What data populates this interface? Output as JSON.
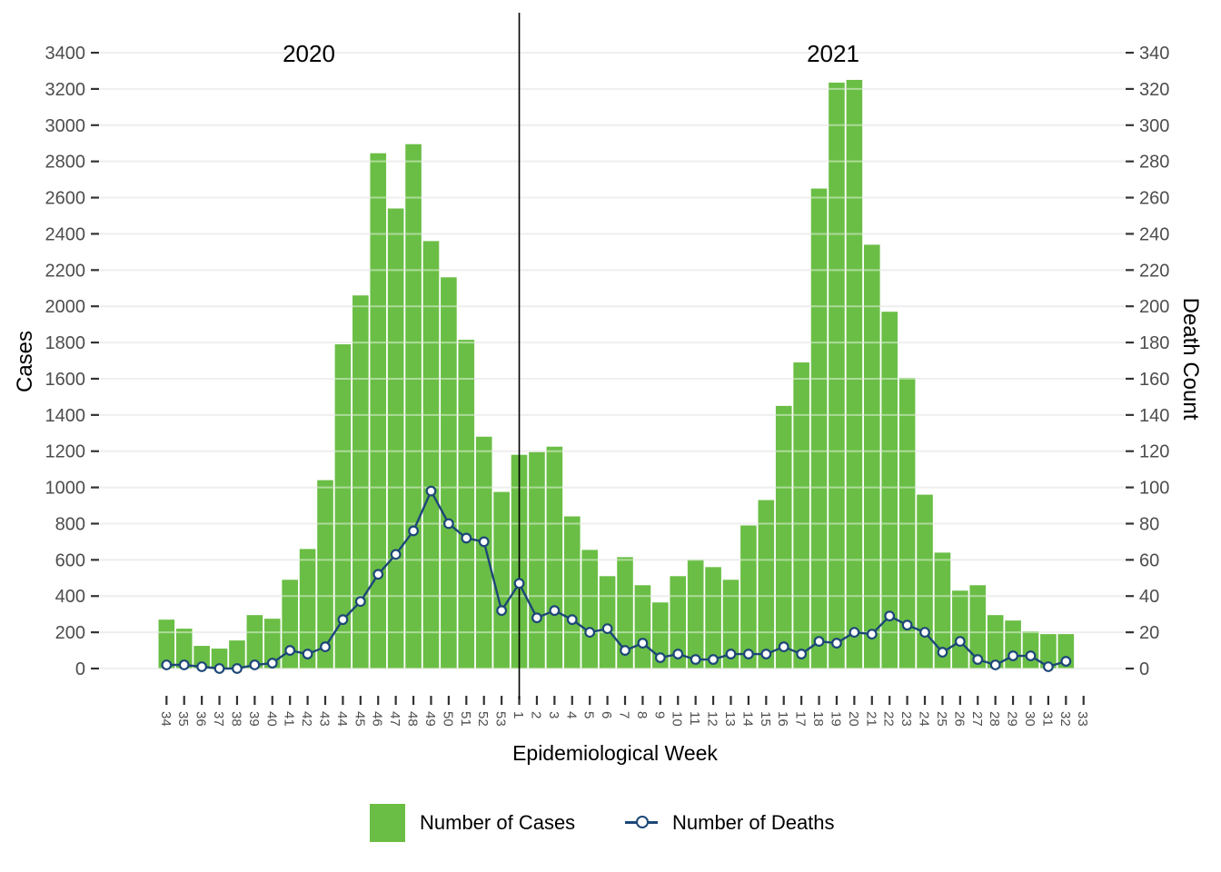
{
  "chart_data": {
    "type": "combo",
    "title": "",
    "xlabel": "Epidemiological Week",
    "ylabel_left": "Cases",
    "ylabel_right": "Death Count",
    "ylim_left": [
      0,
      3400
    ],
    "ylim_right": [
      0,
      340
    ],
    "y_left_ticks": [
      0,
      200,
      400,
      600,
      800,
      1000,
      1200,
      1400,
      1600,
      1800,
      2000,
      2200,
      2400,
      2600,
      2800,
      3000,
      3200,
      3400
    ],
    "y_right_ticks": [
      0,
      20,
      40,
      60,
      80,
      100,
      120,
      140,
      160,
      180,
      200,
      220,
      240,
      260,
      280,
      300,
      320,
      340
    ],
    "grid": true,
    "legend_position": "bottom",
    "categories": [
      "34",
      "35",
      "36",
      "37",
      "38",
      "39",
      "40",
      "41",
      "42",
      "43",
      "44",
      "45",
      "46",
      "47",
      "48",
      "49",
      "50",
      "51",
      "52",
      "53",
      "1",
      "2",
      "3",
      "4",
      "5",
      "6",
      "7",
      "8",
      "9",
      "10",
      "11",
      "12",
      "13",
      "14",
      "15",
      "16",
      "17",
      "18",
      "19",
      "20",
      "21",
      "22",
      "23",
      "24",
      "25",
      "26",
      "27",
      "28",
      "29",
      "30",
      "31",
      "32",
      "33"
    ],
    "year_labels": [
      {
        "text": "2020"
      },
      {
        "text": "2021"
      }
    ],
    "year_separator_category_index": 20,
    "series": [
      {
        "name": "Number of Cases",
        "type": "bar",
        "axis": "left",
        "color": "#6abe45",
        "values": [
          270,
          220,
          125,
          110,
          155,
          295,
          275,
          490,
          660,
          1040,
          1790,
          2060,
          2845,
          2540,
          2895,
          2360,
          2160,
          1815,
          1280,
          975,
          1180,
          1195,
          1225,
          840,
          655,
          510,
          615,
          460,
          365,
          510,
          600,
          560,
          490,
          790,
          930,
          1450,
          1690,
          2650,
          3235,
          3250,
          2340,
          1970,
          1605,
          960,
          640,
          430,
          460,
          295,
          265,
          205,
          190,
          190,
          null
        ]
      },
      {
        "name": "Number of Deaths",
        "type": "line",
        "axis": "right",
        "color": "#1c4777",
        "marker": "open-circle",
        "values": [
          2,
          2,
          1,
          0,
          0,
          2,
          3,
          10,
          8,
          12,
          27,
          37,
          52,
          63,
          76,
          98,
          80,
          72,
          70,
          32,
          47,
          28,
          32,
          27,
          20,
          22,
          10,
          14,
          6,
          8,
          5,
          5,
          8,
          8,
          8,
          12,
          8,
          15,
          14,
          20,
          19,
          29,
          24,
          20,
          9,
          15,
          5,
          2,
          7,
          7,
          1,
          4,
          null
        ]
      }
    ]
  },
  "legend": {
    "items": [
      {
        "label": "Number of Cases",
        "swatch": "bar",
        "color": "#6abe45"
      },
      {
        "label": "Number of Deaths",
        "swatch": "line-point",
        "color": "#1c4777"
      }
    ]
  },
  "colors": {
    "gridline": "#e2e2e2",
    "tick_mark": "#333333",
    "tick_label": "#4d4d4d",
    "separator_line": "#000000"
  }
}
